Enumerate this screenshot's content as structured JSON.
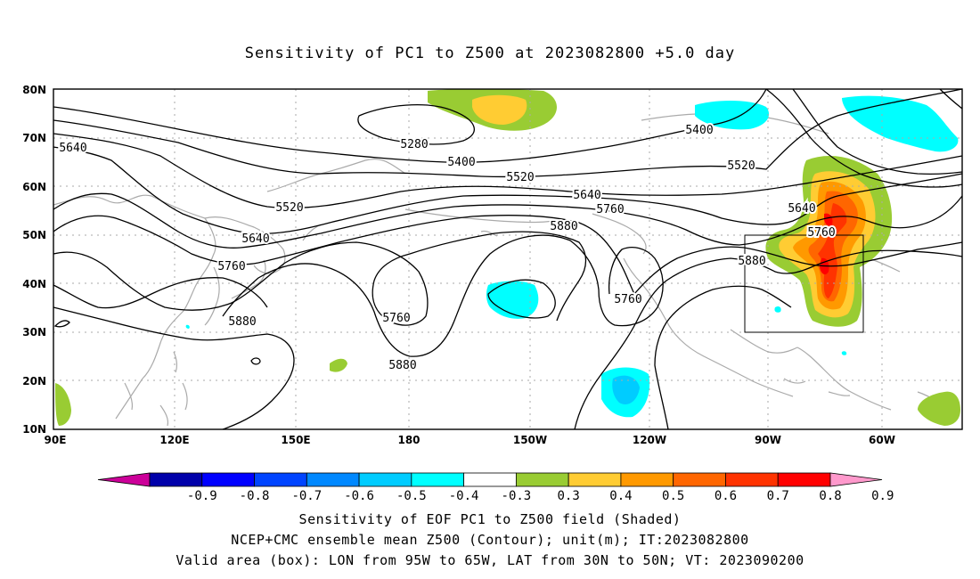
{
  "title": "Sensitivity of PC1 to Z500 at 2023082800 +5.0 day",
  "lat_labels": [
    "80N",
    "70N",
    "60N",
    "50N",
    "40N",
    "30N",
    "20N",
    "10N"
  ],
  "lon_labels": [
    "90E",
    "120E",
    "150E",
    "180",
    "150W",
    "120W",
    "90W",
    "60W"
  ],
  "contour_labels": [
    {
      "text": "5280"
    },
    {
      "text": "5400"
    },
    {
      "text": "5400"
    },
    {
      "text": "5520"
    },
    {
      "text": "5520"
    },
    {
      "text": "5520"
    },
    {
      "text": "5640"
    },
    {
      "text": "5640"
    },
    {
      "text": "5640"
    },
    {
      "text": "5640"
    },
    {
      "text": "5760"
    },
    {
      "text": "5760"
    },
    {
      "text": "5760"
    },
    {
      "text": "5760"
    },
    {
      "text": "5760"
    },
    {
      "text": "5880"
    },
    {
      "text": "5880"
    },
    {
      "text": "5880"
    },
    {
      "text": "5880"
    }
  ],
  "colorbar": {
    "labels": [
      "-0.9",
      "-0.8",
      "-0.7",
      "-0.6",
      "-0.5",
      "-0.4",
      "-0.3",
      "0.3",
      "0.4",
      "0.5",
      "0.6",
      "0.7",
      "0.8",
      "0.9"
    ],
    "colors": [
      "#cc0099",
      "#0000aa",
      "#0000ff",
      "#0044ff",
      "#0088ff",
      "#00ccff",
      "#00ffff",
      "#ffffff",
      "#99cc33",
      "#ffcc33",
      "#ff9900",
      "#ff6600",
      "#ff3300",
      "#ff0000",
      "#ff99cc"
    ]
  },
  "valid_box": {
    "lon_from": "95W",
    "lon_to": "65W",
    "lat_from": "30N",
    "lat_to": "50N"
  },
  "footer": {
    "line1": "Sensitivity of EOF PC1 to Z500 field (Shaded)",
    "line2": "NCEP+CMC ensemble mean Z500 (Contour); unit(m); IT:2023082800",
    "line3": "Valid area (box): LON from 95W to 65W, LAT from 30N to 50N; VT: 2023090200"
  }
}
